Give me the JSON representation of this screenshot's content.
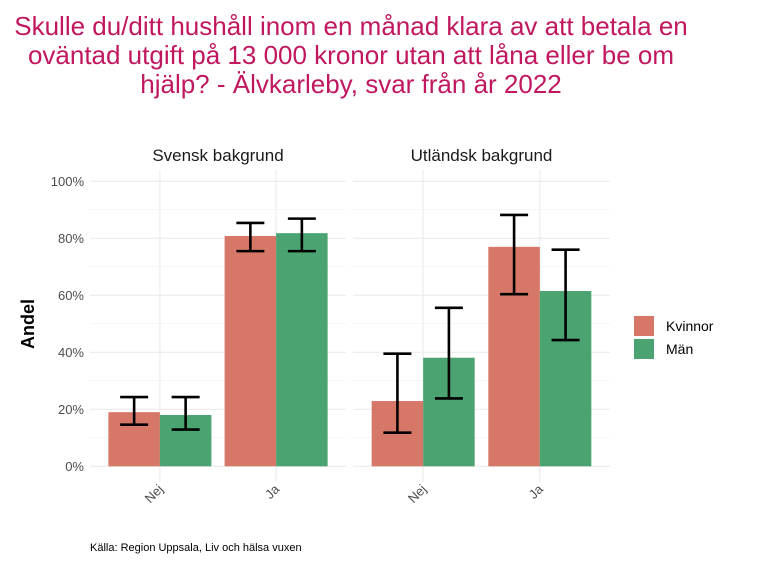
{
  "chart_data": {
    "type": "bar",
    "title": "Skulle du/ditt hushåll inom en månad klara av att betala en oväntad utgift på 13 000 kronor utan att låna eller be om hjälp? - Älvkarleby, svar från år 2022",
    "ylabel": "Andel",
    "xlabel": "",
    "ylim": [
      0,
      100
    ],
    "yticks": [
      "0%",
      "20%",
      "40%",
      "60%",
      "80%",
      "100%"
    ],
    "ytick_values": [
      0,
      20,
      40,
      60,
      80,
      100
    ],
    "categories": [
      "Nej",
      "Ja"
    ],
    "grid": true,
    "legend_position": "right",
    "panels": [
      {
        "name": "Svensk bakgrund",
        "series": [
          {
            "name": "Kvinnor",
            "color": "#d77768",
            "values": [
              19.0,
              80.8
            ],
            "lower": [
              14.6,
              75.5
            ],
            "upper": [
              24.3,
              85.4
            ]
          },
          {
            "name": "Män",
            "color": "#4aa370",
            "values": [
              18.0,
              81.8
            ],
            "lower": [
              12.9,
              75.5
            ],
            "upper": [
              24.3,
              86.9
            ]
          }
        ]
      },
      {
        "name": "Utländsk bakgrund",
        "series": [
          {
            "name": "Kvinnor",
            "color": "#d77768",
            "values": [
              22.9,
              77.0
            ],
            "lower": [
              11.8,
              60.4
            ],
            "upper": [
              39.5,
              88.2
            ]
          },
          {
            "name": "Män",
            "color": "#4aa370",
            "values": [
              38.1,
              61.5
            ],
            "lower": [
              23.8,
              44.3
            ],
            "upper": [
              55.6,
              76.0
            ]
          }
        ]
      }
    ],
    "legend": [
      {
        "name": "Kvinnor",
        "color": "#d77768"
      },
      {
        "name": "Män",
        "color": "#4aa370"
      }
    ],
    "caption": "Källa: Region Uppsala, Liv och hälsa vuxen"
  }
}
